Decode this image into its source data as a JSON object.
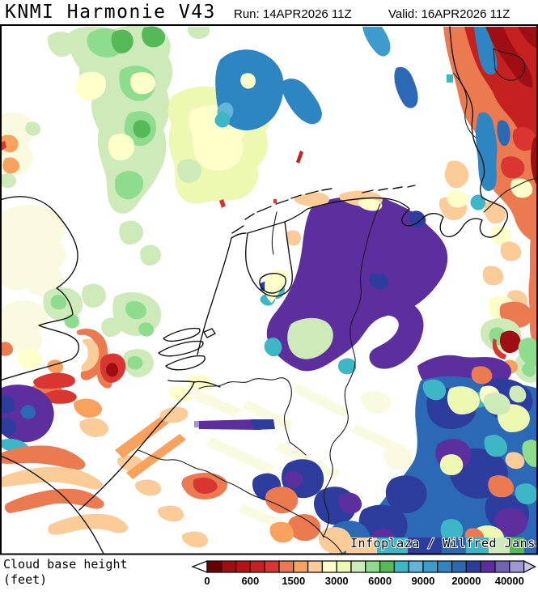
{
  "header": {
    "model_title": "KNMI Harmonie V43",
    "run_label": "Run: 14APR2026 11Z",
    "valid_label": "Valid: 16APR2026 11Z"
  },
  "map": {
    "attribution": "Infoplaza / Wilfred Janssen"
  },
  "legend": {
    "title_line1": "Cloud base height",
    "title_line2": "(feet)",
    "tick_labels": [
      "0",
      "600",
      "1500",
      "3000",
      "6000",
      "9000",
      "20000",
      "40000"
    ],
    "box_colors": [
      "#670000",
      "#9f0e12",
      "#b51318",
      "#c52120",
      "#d93531",
      "#ec7a51",
      "#f8a25e",
      "#fbcc97",
      "#ffffc9",
      "#edf8b0",
      "#cdeab8",
      "#8edc8d",
      "#54ba57",
      "#3db7c6",
      "#5fb6d9",
      "#3c9ccd",
      "#2d86c2",
      "#2b68b6",
      "#2c3d9d",
      "#5d2da0",
      "#7263b7",
      "#9f97cf"
    ],
    "under_range_arrow_color": "#ffffff",
    "over_range_arrow_color": "#c9c5e7",
    "outline_color": "#111111"
  }
}
